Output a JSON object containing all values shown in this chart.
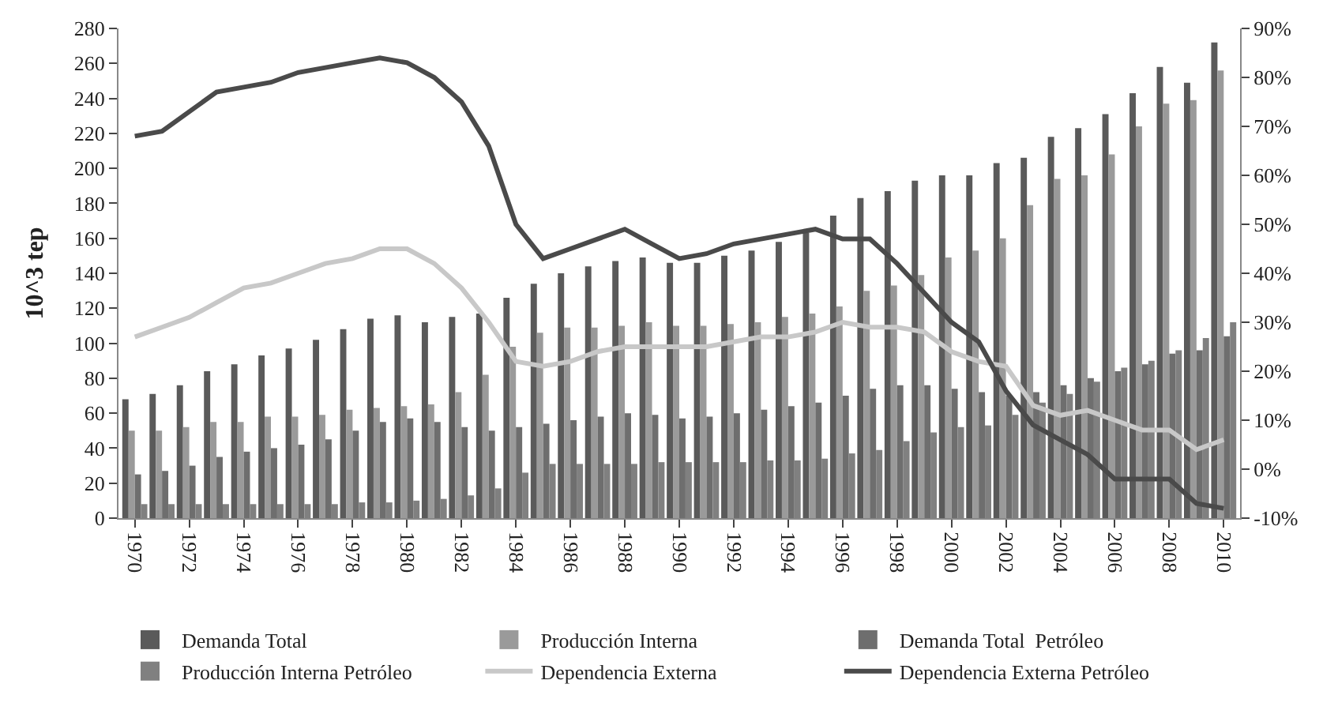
{
  "chart_data": {
    "type": "bar",
    "ylabel": "10^3 tep",
    "categories": [
      "1970",
      null,
      "1972",
      null,
      "1974",
      null,
      "1976",
      null,
      "1978",
      null,
      "1980",
      null,
      "1982",
      null,
      "1984",
      null,
      "1986",
      null,
      "1988",
      null,
      "1990",
      null,
      "1992",
      null,
      "1994",
      null,
      "1996",
      null,
      "1998",
      null,
      "2000",
      null,
      "2002",
      null,
      "2004",
      null,
      "2006",
      null,
      "2008",
      null,
      "2010"
    ],
    "series": [
      {
        "name": "Demanda Total",
        "color": "#5a5a5a",
        "values": [
          68,
          71,
          76,
          84,
          88,
          93,
          97,
          102,
          108,
          114,
          116,
          112,
          115,
          117,
          126,
          134,
          140,
          144,
          147,
          149,
          146,
          146,
          150,
          153,
          158,
          163,
          173,
          183,
          187,
          193,
          196,
          196,
          203,
          206,
          218,
          223,
          231,
          243,
          258,
          249,
          272
        ]
      },
      {
        "name": "Producción Interna",
        "color": "#9a9a9a",
        "values": [
          50,
          50,
          52,
          55,
          55,
          58,
          58,
          59,
          62,
          63,
          64,
          65,
          72,
          82,
          98,
          106,
          109,
          109,
          110,
          112,
          110,
          110,
          111,
          112,
          115,
          117,
          121,
          130,
          133,
          139,
          149,
          153,
          160,
          179,
          194,
          196,
          208,
          224,
          237,
          239,
          256
        ]
      },
      {
        "name": "Demanda Total  Petróleo",
        "color": "#6e6e6e",
        "values": [
          25,
          27,
          30,
          35,
          38,
          40,
          42,
          45,
          50,
          55,
          57,
          55,
          52,
          50,
          52,
          54,
          56,
          58,
          60,
          59,
          57,
          58,
          60,
          62,
          64,
          66,
          70,
          74,
          76,
          76,
          74,
          72,
          70,
          72,
          76,
          80,
          84,
          88,
          94,
          96,
          104
        ]
      },
      {
        "name": "Producción Interna Petróleo",
        "color": "#808080",
        "values": [
          8,
          8,
          8,
          8,
          8,
          8,
          8,
          8,
          9,
          9,
          10,
          11,
          13,
          17,
          26,
          31,
          31,
          31,
          31,
          32,
          32,
          32,
          32,
          33,
          33,
          34,
          37,
          39,
          44,
          49,
          52,
          53,
          59,
          66,
          71,
          78,
          86,
          90,
          96,
          103,
          112
        ]
      },
      {
        "name": "Dependencia Externa",
        "type": "line",
        "axis": "y2",
        "color": "#c8c8c8",
        "values": [
          27,
          29,
          31,
          34,
          37,
          38,
          40,
          42,
          43,
          45,
          45,
          42,
          37,
          30,
          22,
          21,
          22,
          24,
          25,
          25,
          25,
          25,
          26,
          27,
          27,
          28,
          30,
          29,
          29,
          28,
          24,
          22,
          21,
          13,
          11,
          12,
          10,
          8,
          8,
          4,
          6
        ]
      },
      {
        "name": "Dependencia Externa Petróleo",
        "type": "line",
        "axis": "y2",
        "color": "#4a4a4a",
        "values": [
          68,
          69,
          73,
          77,
          78,
          79,
          81,
          82,
          83,
          84,
          83,
          80,
          75,
          66,
          50,
          43,
          45,
          47,
          49,
          46,
          43,
          44,
          46,
          47,
          48,
          49,
          47,
          47,
          42,
          36,
          30,
          26,
          16,
          9,
          6,
          3,
          -2,
          -2,
          -2,
          -7,
          -8
        ]
      }
    ],
    "ylim": [
      0,
      280
    ],
    "yticks": [
      0,
      20,
      40,
      60,
      80,
      100,
      120,
      140,
      160,
      180,
      200,
      220,
      240,
      260,
      280
    ],
    "y2lim": [
      -10,
      90
    ],
    "y2ticks": [
      {
        "value": -10,
        "label": "-10%"
      },
      {
        "value": 0,
        "label": "0%"
      },
      {
        "value": 10,
        "label": "10%"
      },
      {
        "value": 20,
        "label": "20%"
      },
      {
        "value": 30,
        "label": "30%"
      },
      {
        "value": 40,
        "label": "40%"
      },
      {
        "value": 50,
        "label": "50%"
      },
      {
        "value": 60,
        "label": "60%"
      },
      {
        "value": 70,
        "label": "70%"
      },
      {
        "value": 80,
        "label": "80%"
      },
      {
        "value": 90,
        "label": "90%"
      }
    ],
    "legend": "bottom"
  }
}
